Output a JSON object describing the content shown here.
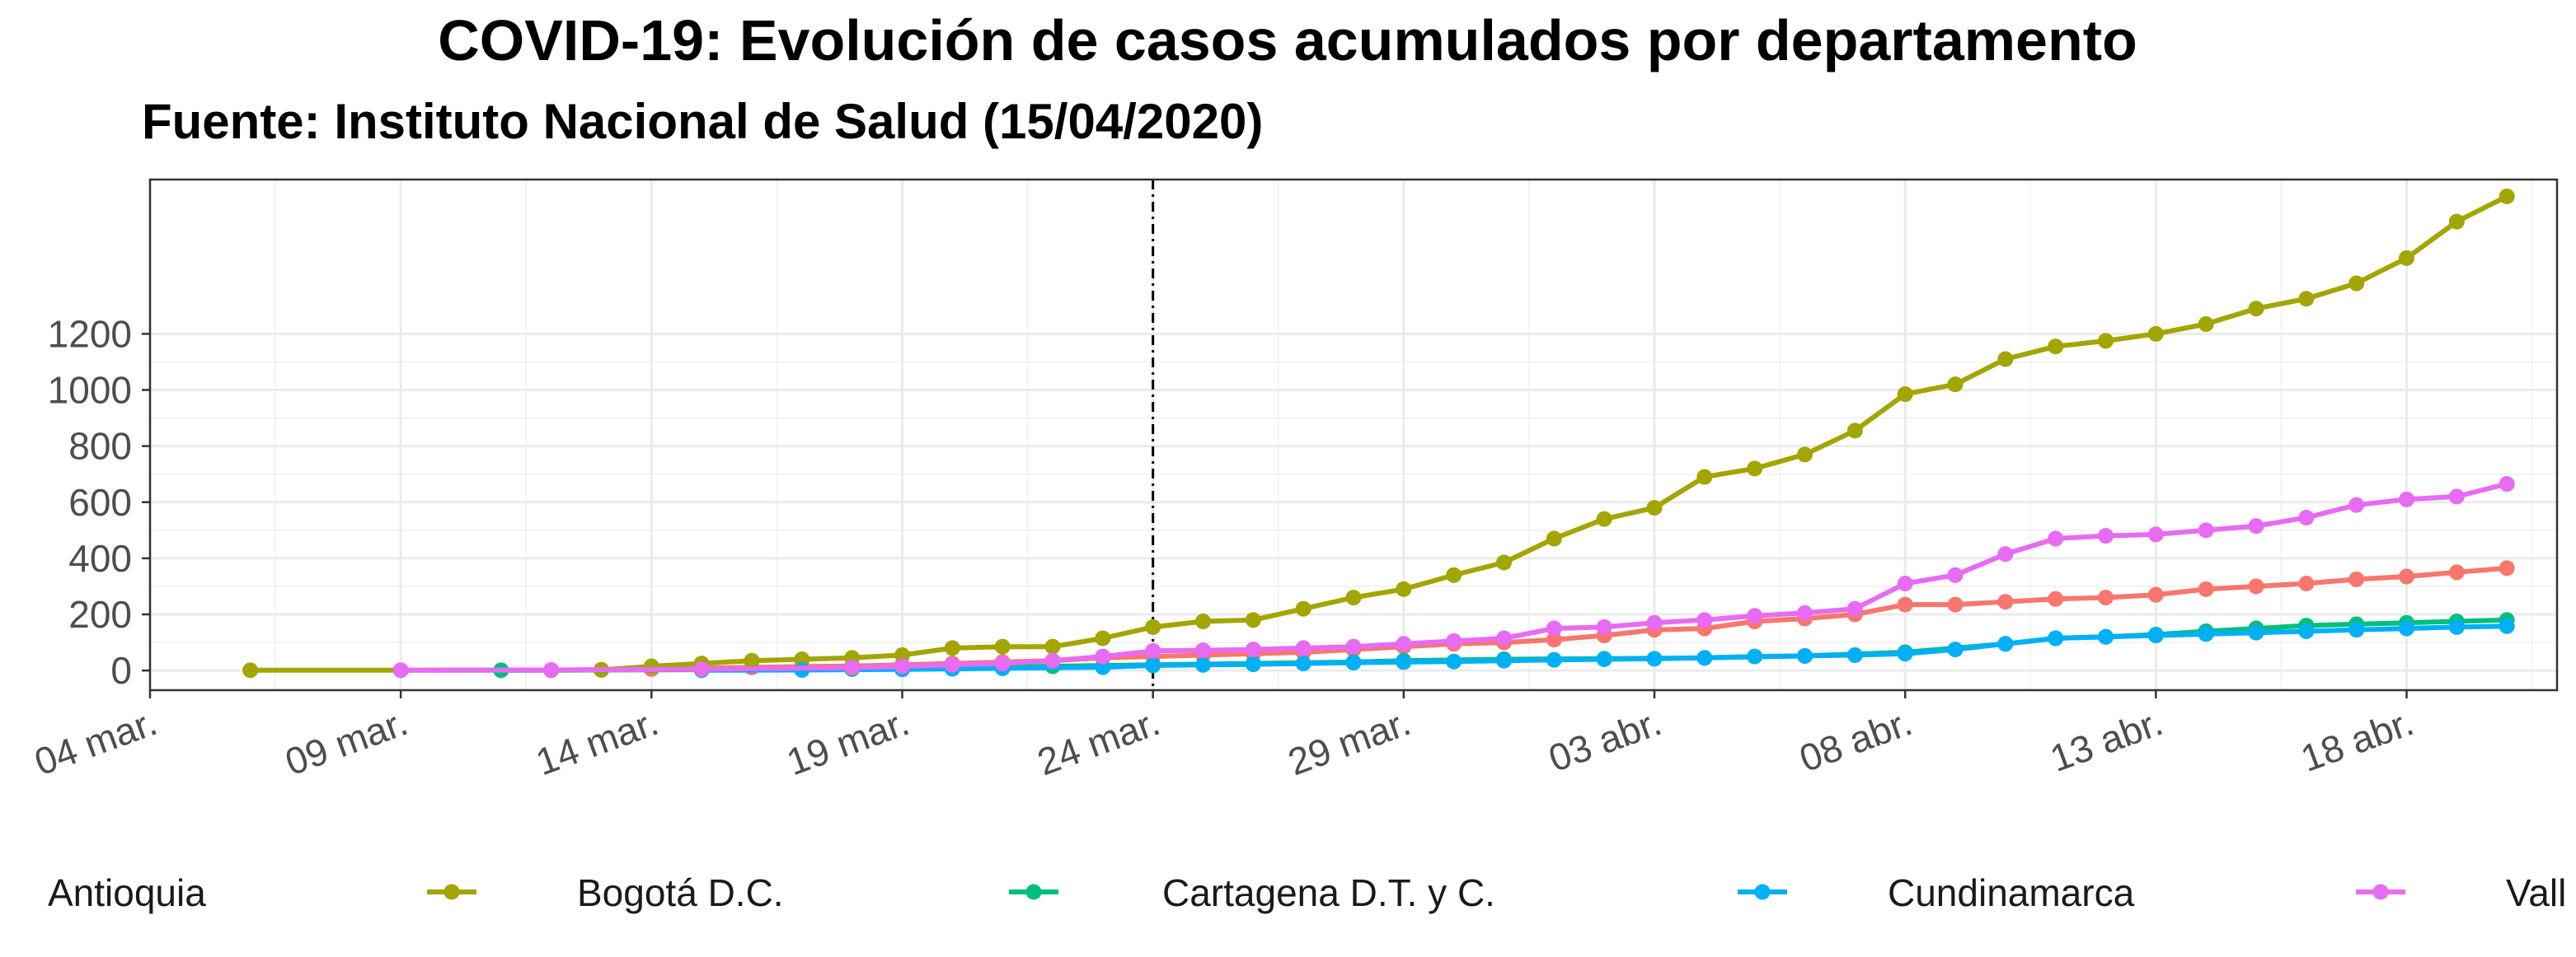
{
  "chart_data": {
    "type": "line",
    "title": "COVID-19: Evolución de casos acumulados por departamento",
    "subtitle": "Fuente: Instituto Nacional de Salud (15/04/2020)",
    "xlabel": "",
    "ylabel": "",
    "x_type": "date",
    "xlim": [
      "2020-03-04",
      "2020-04-21"
    ],
    "ylim": [
      -70,
      1750
    ],
    "x_ticks": [
      "2020-03-04",
      "2020-03-09",
      "2020-03-14",
      "2020-03-19",
      "2020-03-24",
      "2020-03-29",
      "2020-04-03",
      "2020-04-08",
      "2020-04-13",
      "2020-04-18"
    ],
    "x_tick_labels": [
      "04 mar.",
      "09 mar.",
      "14 mar.",
      "19 mar.",
      "24 mar.",
      "29 mar.",
      "03 abr.",
      "08 abr.",
      "13 abr.",
      "18 abr."
    ],
    "y_ticks": [
      0,
      200,
      400,
      600,
      800,
      1000,
      1200
    ],
    "grid": true,
    "vline": {
      "x": "2020-03-24",
      "style": "dotdash"
    },
    "legend_position": "bottom",
    "series": [
      {
        "name": "Antioquia",
        "color": "#F8766D",
        "x": [
          "2020-03-12",
          "2020-03-13",
          "2020-03-14",
          "2020-03-15",
          "2020-03-16",
          "2020-03-17",
          "2020-03-18",
          "2020-03-19",
          "2020-03-20",
          "2020-03-21",
          "2020-03-22",
          "2020-03-23",
          "2020-03-24",
          "2020-03-25",
          "2020-03-26",
          "2020-03-27",
          "2020-03-28",
          "2020-03-29",
          "2020-03-30",
          "2020-03-31",
          "2020-04-01",
          "2020-04-02",
          "2020-04-03",
          "2020-04-04",
          "2020-04-05",
          "2020-04-06",
          "2020-04-07",
          "2020-04-08",
          "2020-04-09",
          "2020-04-10",
          "2020-04-11",
          "2020-04-12",
          "2020-04-13",
          "2020-04-14",
          "2020-04-15",
          "2020-04-16",
          "2020-04-17",
          "2020-04-18",
          "2020-04-19",
          "2020-04-20"
        ],
        "values": [
          1,
          3,
          5,
          9,
          11,
          14,
          16,
          20,
          25,
          30,
          35,
          45,
          50,
          55,
          60,
          65,
          75,
          85,
          95,
          100,
          110,
          125,
          145,
          150,
          175,
          185,
          200,
          235,
          235,
          245,
          255,
          260,
          270,
          290,
          300,
          310,
          325,
          335,
          350,
          365
        ]
      },
      {
        "name": "Bogotá D.C.",
        "color": "#A3A500",
        "x": [
          "2020-03-06",
          "2020-03-09",
          "2020-03-12",
          "2020-03-13",
          "2020-03-14",
          "2020-03-15",
          "2020-03-16",
          "2020-03-17",
          "2020-03-18",
          "2020-03-19",
          "2020-03-20",
          "2020-03-21",
          "2020-03-22",
          "2020-03-23",
          "2020-03-24",
          "2020-03-25",
          "2020-03-26",
          "2020-03-27",
          "2020-03-28",
          "2020-03-29",
          "2020-03-30",
          "2020-03-31",
          "2020-04-01",
          "2020-04-02",
          "2020-04-03",
          "2020-04-04",
          "2020-04-05",
          "2020-04-06",
          "2020-04-07",
          "2020-04-08",
          "2020-04-09",
          "2020-04-10",
          "2020-04-11",
          "2020-04-12",
          "2020-04-13",
          "2020-04-14",
          "2020-04-15",
          "2020-04-16",
          "2020-04-17",
          "2020-04-18",
          "2020-04-19",
          "2020-04-20"
        ],
        "values": [
          1,
          1,
          1,
          2,
          15,
          25,
          35,
          40,
          45,
          55,
          80,
          85,
          85,
          115,
          155,
          175,
          180,
          220,
          260,
          290,
          340,
          385,
          470,
          540,
          580,
          690,
          720,
          770,
          855,
          985,
          1020,
          1110,
          1155,
          1175,
          1200,
          1235,
          1290,
          1325,
          1380,
          1470,
          1600,
          1690
        ]
      },
      {
        "name": "Cartagena D.T. y C.",
        "color": "#00BF7D",
        "x": [
          "2020-03-11",
          "2020-03-15",
          "2020-03-18",
          "2020-03-20",
          "2020-03-22",
          "2020-03-24",
          "2020-03-26",
          "2020-03-28",
          "2020-03-29",
          "2020-03-31",
          "2020-04-02",
          "2020-04-04",
          "2020-04-06",
          "2020-04-08",
          "2020-04-10",
          "2020-04-11",
          "2020-04-12",
          "2020-04-13",
          "2020-04-14",
          "2020-04-15",
          "2020-04-16",
          "2020-04-17",
          "2020-04-18",
          "2020-04-19",
          "2020-04-20"
        ],
        "values": [
          1,
          3,
          5,
          10,
          15,
          20,
          25,
          30,
          35,
          40,
          42,
          45,
          52,
          65,
          95,
          115,
          120,
          128,
          140,
          150,
          160,
          165,
          170,
          175,
          180
        ]
      },
      {
        "name": "Cundinamarca",
        "color": "#00B0F6",
        "x": [
          "2020-03-15",
          "2020-03-17",
          "2020-03-19",
          "2020-03-20",
          "2020-03-21",
          "2020-03-23",
          "2020-03-24",
          "2020-03-25",
          "2020-03-26",
          "2020-03-27",
          "2020-03-28",
          "2020-03-29",
          "2020-03-30",
          "2020-03-31",
          "2020-04-01",
          "2020-04-02",
          "2020-04-03",
          "2020-04-04",
          "2020-04-05",
          "2020-04-06",
          "2020-04-07",
          "2020-04-08",
          "2020-04-09",
          "2020-04-10",
          "2020-04-11",
          "2020-04-12",
          "2020-04-13",
          "2020-04-14",
          "2020-04-15",
          "2020-04-16",
          "2020-04-17",
          "2020-04-18",
          "2020-04-19",
          "2020-04-20"
        ],
        "values": [
          1,
          2,
          4,
          6,
          8,
          12,
          18,
          20,
          22,
          25,
          28,
          30,
          32,
          35,
          38,
          40,
          42,
          45,
          50,
          52,
          55,
          60,
          75,
          95,
          115,
          120,
          125,
          130,
          135,
          140,
          145,
          150,
          155,
          158
        ]
      },
      {
        "name": "Valle del Cauca",
        "color": "#E76BF3",
        "x": [
          "2020-03-09",
          "2020-03-12",
          "2020-03-15",
          "2020-03-18",
          "2020-03-19",
          "2020-03-20",
          "2020-03-21",
          "2020-03-22",
          "2020-03-23",
          "2020-03-24",
          "2020-03-25",
          "2020-03-26",
          "2020-03-27",
          "2020-03-28",
          "2020-03-29",
          "2020-03-30",
          "2020-03-31",
          "2020-04-01",
          "2020-04-02",
          "2020-04-03",
          "2020-04-04",
          "2020-04-05",
          "2020-04-06",
          "2020-04-07",
          "2020-04-08",
          "2020-04-09",
          "2020-04-10",
          "2020-04-11",
          "2020-04-12",
          "2020-04-13",
          "2020-04-14",
          "2020-04-15",
          "2020-04-16",
          "2020-04-17",
          "2020-04-18",
          "2020-04-19",
          "2020-04-20"
        ],
        "values": [
          1,
          2,
          5,
          10,
          15,
          20,
          25,
          35,
          50,
          70,
          72,
          75,
          80,
          85,
          95,
          105,
          115,
          150,
          155,
          170,
          180,
          195,
          205,
          220,
          310,
          340,
          415,
          470,
          480,
          485,
          500,
          515,
          545,
          590,
          610,
          620,
          665
        ]
      }
    ],
    "legend_labels_visible": [
      "Antioquia",
      "Bogotá D.C.",
      "Cartagena D.T. y C.",
      "Cundinamarca",
      "Vall"
    ]
  }
}
